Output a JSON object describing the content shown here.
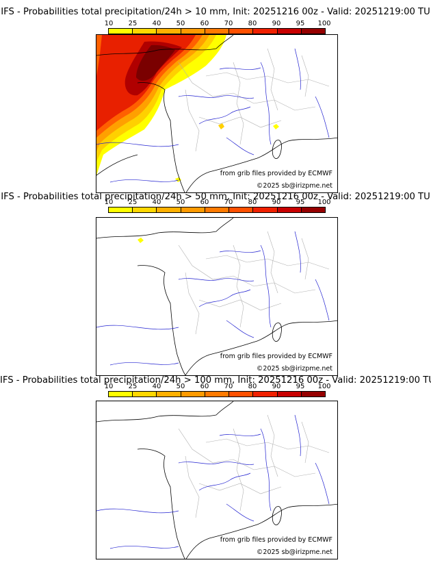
{
  "panels": [
    {
      "title": "IFS - Probabilities total precipitation/24h > 10 mm, Init: 20251216 00z - Valid: 20251219:00 TU",
      "threshold_mm": 10
    },
    {
      "title": "IFS - Probabilities total precipitation/24h > 50 mm, Init: 20251216 00z - Valid: 20251219:00 TU",
      "threshold_mm": 50
    },
    {
      "title": "IFS - Probabilities total precipitation/24h > 100 mm, Init: 20251216 00z - Valid: 20251219:00 TU",
      "threshold_mm": 100
    }
  ],
  "colorbar": {
    "ticks": [
      "10",
      "25",
      "40",
      "50",
      "60",
      "70",
      "80",
      "90",
      "95",
      "100"
    ],
    "colors": [
      "#ffff00",
      "#ffd700",
      "#ffb000",
      "#ff9a00",
      "#ff7a00",
      "#ff5000",
      "#f02000",
      "#c80000",
      "#960000",
      "#5a0000"
    ]
  },
  "credits": {
    "source": "from grib files provided by ECMWF",
    "copyright": "©2025 sb@irizpme.net"
  },
  "colors": {
    "rivers": "#2020d0",
    "borders": "#b0b0b0",
    "coast": "#000000"
  }
}
